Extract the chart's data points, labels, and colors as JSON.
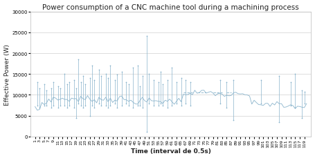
{
  "title": "Power consumption of a CNC machine tool during a machining process",
  "xlabel": "Time (interval de 0.5s)",
  "ylabel": "Effective Power (W)",
  "ylim": [
    0,
    30000
  ],
  "yticks": [
    0,
    5000,
    10000,
    15000,
    20000,
    25000,
    30000
  ],
  "ytick_labels": [
    "0",
    "5000",
    "10000",
    "15000",
    "20000",
    "25000",
    "30000"
  ],
  "n_points": 120,
  "line_color": "#8ab4cc",
  "bg_color": "#ffffff",
  "grid_color": "#d0d0d0",
  "title_fontsize": 7.5,
  "label_fontsize": 6.5,
  "tick_fontsize": 5.0
}
